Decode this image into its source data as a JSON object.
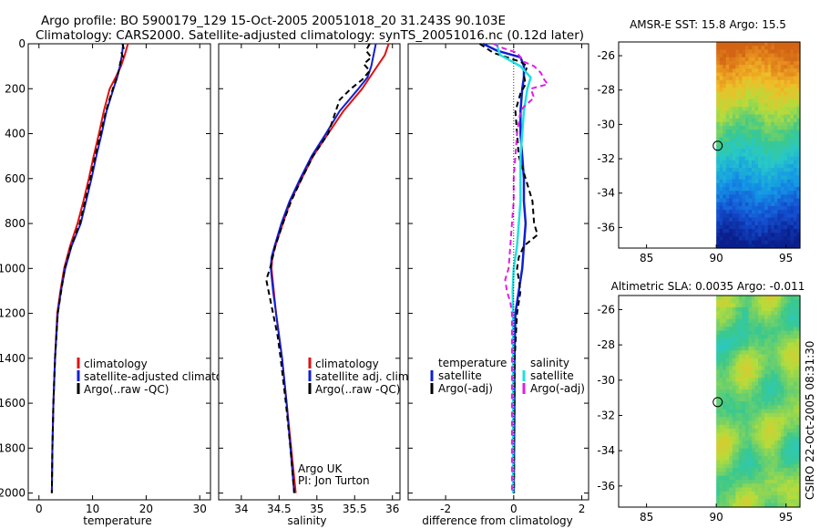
{
  "header": {
    "line1": "Argo profile: BO 5900179_129 15-Oct-2005 20051018_20 31.243S 90.103E",
    "line2": "Climatology: CARS2000. Satellite-adjusted climatology: synTS_20051016.nc (0.12d later)"
  },
  "colors": {
    "climatology": "#e01010",
    "satellite": "#1020d0",
    "argo": "#000000",
    "salinity_satellite": "#20e0e0",
    "salinity_argo": "#e020e0"
  },
  "chart_data": [
    {
      "type": "line",
      "panel": "temperature",
      "xlabel": "temperature",
      "xlim": [
        -2,
        32
      ],
      "xticks": [
        "0",
        "10",
        "20",
        "30"
      ],
      "ylim": [
        2030,
        0
      ],
      "yticks": [
        "0",
        "200",
        "400",
        "600",
        "800",
        "1000",
        "1200",
        "1400",
        "1600",
        "1800",
        "2000"
      ],
      "legend": [
        "climatology",
        "satellite-adjusted climatology",
        "Argo(..raw -QC)"
      ],
      "series": [
        {
          "name": "climatology",
          "depth": [
            0,
            50,
            100,
            150,
            200,
            300,
            400,
            500,
            600,
            700,
            800,
            900,
            1000,
            1100,
            1200,
            1400,
            1600,
            1800,
            2000
          ],
          "values": [
            16.6,
            16.0,
            15.3,
            14.3,
            13.2,
            12.1,
            11.2,
            10.2,
            9.3,
            8.3,
            7.2,
            5.8,
            4.7,
            4.0,
            3.4,
            3.0,
            2.7,
            2.5,
            2.4
          ]
        },
        {
          "name": "satellite-adjusted climatology",
          "depth": [
            0,
            50,
            100,
            150,
            200,
            300,
            400,
            500,
            600,
            700,
            800,
            900,
            1000,
            1100,
            1200,
            1400,
            1600,
            1800,
            2000
          ],
          "values": [
            15.7,
            15.5,
            15.1,
            14.6,
            13.9,
            12.6,
            11.7,
            10.7,
            9.8,
            8.8,
            7.8,
            6.1,
            4.9,
            4.1,
            3.5,
            3.0,
            2.7,
            2.5,
            2.4
          ]
        },
        {
          "name": "Argo(..raw -QC)",
          "depth": [
            0,
            20,
            40,
            60,
            80,
            120,
            160,
            200,
            300,
            400,
            500,
            600,
            700,
            800,
            900,
            1000,
            1200,
            1400,
            1600,
            1800,
            2000
          ],
          "values": [
            15.6,
            15.8,
            15.4,
            15.7,
            15.2,
            14.9,
            14.4,
            13.8,
            12.5,
            11.5,
            10.5,
            9.6,
            8.6,
            7.6,
            6.0,
            4.8,
            3.5,
            3.0,
            2.7,
            2.5,
            2.4
          ]
        }
      ]
    },
    {
      "type": "line",
      "panel": "salinity",
      "xlabel": "salinity",
      "xlim": [
        33.7,
        36.1
      ],
      "xticks": [
        "34",
        "34.5",
        "35",
        "35.5",
        "36"
      ],
      "ylim": [
        2030,
        0
      ],
      "legend": [
        "climatology",
        "satellite adj. clim.",
        "Argo(..raw -QC)"
      ],
      "annotation": [
        "Argo UK",
        "PI: Jon Turton"
      ],
      "series": [
        {
          "name": "climatology",
          "depth": [
            0,
            50,
            100,
            150,
            200,
            300,
            400,
            500,
            600,
            700,
            800,
            900,
            950,
            1000,
            1100,
            1200,
            1300,
            1400,
            1600,
            1800,
            2000
          ],
          "values": [
            35.95,
            35.9,
            35.8,
            35.7,
            35.6,
            35.35,
            35.15,
            34.95,
            34.8,
            34.65,
            34.55,
            34.45,
            34.41,
            34.4,
            34.43,
            34.46,
            34.5,
            34.54,
            34.6,
            34.66,
            34.72
          ]
        },
        {
          "name": "satellite adj. clim.",
          "depth": [
            0,
            50,
            100,
            150,
            200,
            300,
            400,
            500,
            600,
            700,
            800,
            900,
            950,
            1000,
            1100,
            1200,
            1300,
            1400,
            1600,
            1800,
            2000
          ],
          "values": [
            35.78,
            35.75,
            35.72,
            35.67,
            35.55,
            35.3,
            35.12,
            34.93,
            34.78,
            34.64,
            34.53,
            34.44,
            34.4,
            34.39,
            34.42,
            34.46,
            34.5,
            34.54,
            34.6,
            34.65,
            34.7
          ]
        },
        {
          "name": "Argo(..raw -QC)",
          "depth": [
            0,
            30,
            60,
            90,
            120,
            160,
            200,
            250,
            300,
            400,
            500,
            600,
            700,
            800,
            900,
            1000,
            1050,
            1100,
            1200,
            1300,
            1400,
            1600,
            1800,
            2000
          ],
          "values": [
            35.7,
            35.65,
            35.72,
            35.62,
            35.7,
            35.6,
            35.45,
            35.3,
            35.25,
            35.15,
            34.95,
            34.8,
            34.66,
            34.55,
            34.45,
            34.38,
            34.33,
            34.36,
            34.42,
            34.48,
            34.52,
            34.59,
            34.65,
            34.7
          ]
        }
      ]
    },
    {
      "type": "line",
      "panel": "difference",
      "xlabel": "difference from climatology",
      "xlim": [
        -3.1,
        2.2
      ],
      "xticks": [
        "-2",
        "0",
        "2"
      ],
      "ylim": [
        2030,
        0
      ],
      "legend_temperature": {
        "title": "temperature",
        "items": [
          "satellite",
          "Argo(-adj)"
        ]
      },
      "legend_salinity": {
        "title": "salinity",
        "items": [
          "satellite",
          "Argo(-adj)"
        ]
      },
      "series": [
        {
          "name": "temperature satellite",
          "depth": [
            0,
            30,
            60,
            100,
            150,
            200,
            300,
            400,
            500,
            600,
            700,
            800,
            900,
            1000,
            1100,
            1200,
            1400,
            1600,
            1800,
            2000
          ],
          "values": [
            -0.9,
            -0.5,
            0.2,
            0.3,
            0.3,
            0.25,
            0.2,
            0.2,
            0.25,
            0.3,
            0.3,
            0.35,
            0.3,
            0.25,
            0.15,
            0.05,
            0.02,
            0.02,
            0.01,
            0.0
          ]
        },
        {
          "name": "temperature Argo(-adj)",
          "depth": [
            0,
            20,
            40,
            60,
            80,
            100,
            140,
            180,
            220,
            300,
            400,
            500,
            600,
            700,
            800,
            850,
            900,
            950,
            1000,
            1100,
            1200,
            1400,
            1600,
            1800,
            2000
          ],
          "values": [
            -1.0,
            -0.8,
            -0.6,
            -0.2,
            0.2,
            0.4,
            0.3,
            0.35,
            0.2,
            0.05,
            0.1,
            0.15,
            0.35,
            0.55,
            0.6,
            0.7,
            0.3,
            0.15,
            0.1,
            0.2,
            0.1,
            0.03,
            0.02,
            0.01,
            0.01
          ]
        },
        {
          "name": "salinity satellite",
          "depth": [
            0,
            50,
            100,
            150,
            200,
            300,
            400,
            500,
            600,
            700,
            800,
            900,
            1000,
            1100,
            1200,
            1400,
            1600,
            1800,
            2000
          ],
          "values": [
            -0.5,
            -0.4,
            0.2,
            0.5,
            0.4,
            0.3,
            0.25,
            0.2,
            0.2,
            0.2,
            0.15,
            0.1,
            0.0,
            -0.03,
            -0.02,
            -0.02,
            -0.02,
            -0.02,
            -0.02
          ]
        },
        {
          "name": "salinity Argo(-adj)",
          "depth": [
            0,
            20,
            40,
            60,
            80,
            100,
            130,
            160,
            180,
            200,
            240,
            280,
            300,
            350,
            400,
            500,
            600,
            700,
            800,
            900,
            1000,
            1050,
            1100,
            1150,
            1200,
            1300,
            1400,
            1600,
            1800,
            2000
          ],
          "values": [
            -0.6,
            -0.3,
            0.1,
            0.2,
            0.3,
            0.6,
            0.8,
            0.9,
            1.0,
            0.5,
            0.6,
            0.3,
            0.2,
            0.15,
            0.1,
            0.05,
            0.0,
            0.0,
            -0.05,
            -0.1,
            -0.15,
            -0.25,
            -0.2,
            -0.1,
            -0.05,
            -0.05,
            -0.05,
            -0.05,
            -0.05,
            -0.05
          ]
        }
      ]
    }
  ],
  "maps": {
    "sst": {
      "title": "AMSR-E SST: 15.8 Argo: 15.5",
      "xticks": [
        "85",
        "90",
        "95"
      ],
      "yticks": [
        "-26",
        "-28",
        "-30",
        "-32",
        "-34",
        "-36"
      ],
      "lon_range": [
        83,
        96
      ],
      "lat_range": [
        -37.2,
        -25.2
      ],
      "data_lon_start": 90,
      "profile_lon": 90.103,
      "profile_lat": -31.243
    },
    "sla": {
      "title": "Altimetric SLA: 0.0035 Argo: -0.011",
      "xticks": [
        "85",
        "90",
        "95"
      ],
      "yticks": [
        "-26",
        "-28",
        "-30",
        "-32",
        "-34",
        "-36"
      ],
      "lon_range": [
        83,
        96
      ],
      "lat_range": [
        -37.2,
        -25.2
      ],
      "data_lon_start": 90,
      "profile_lon": 90.103,
      "profile_lat": -31.243
    }
  },
  "footer": {
    "credit": "CSIRO 22-Oct-2005 08:31:30"
  }
}
